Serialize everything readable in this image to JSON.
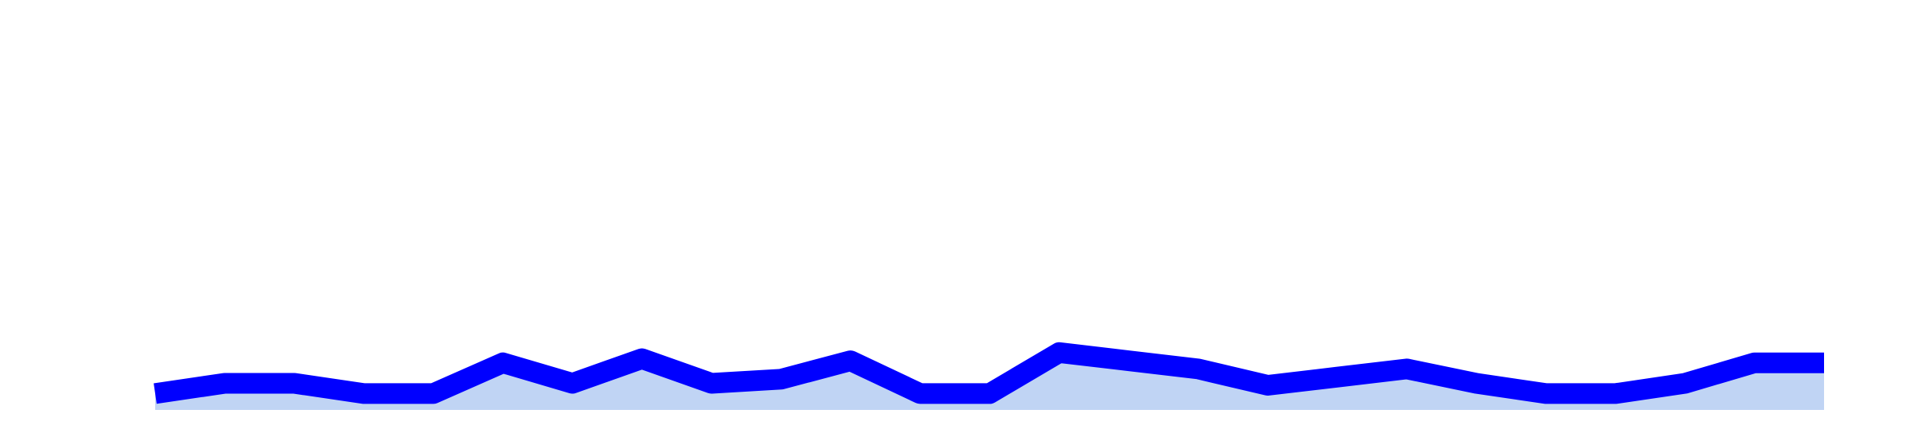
{
  "chart_data": {
    "type": "area",
    "title": "",
    "xlabel": "",
    "ylabel": "",
    "grid": false,
    "legend": "none",
    "ylim": [
      0,
      1
    ],
    "baseline": 0,
    "series": [
      {
        "values": [
          0.04,
          0.065,
          0.065,
          0.04,
          0.04,
          0.115,
          0.065,
          0.125,
          0.065,
          0.075,
          0.12,
          0.04,
          0.04,
          0.14,
          0.12,
          0.1,
          0.06,
          0.08,
          0.1,
          0.065,
          0.04,
          0.04,
          0.065,
          0.115,
          0.115
        ],
        "line_color": "#0000ff",
        "fill_color": "#c0d4f4"
      }
    ]
  }
}
